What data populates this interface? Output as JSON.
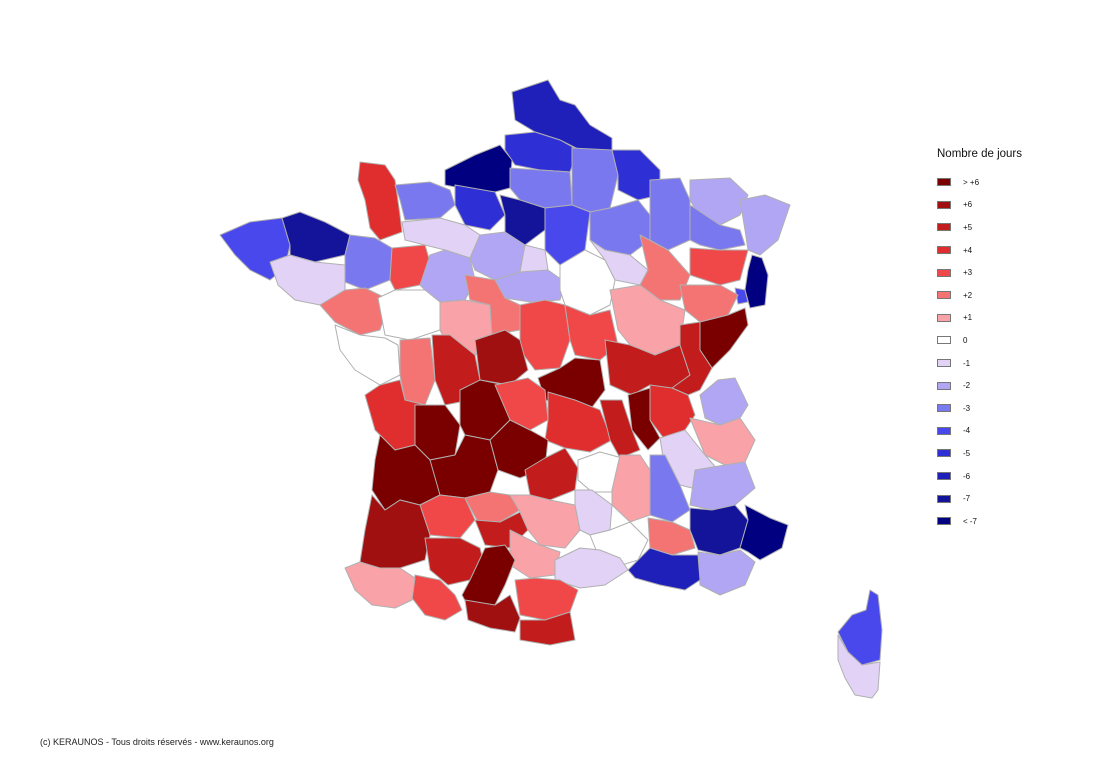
{
  "legend": {
    "title": "Nombre de jours",
    "items": [
      {
        "label": "> +6",
        "color": "#7a0000"
      },
      {
        "label": "+6",
        "color": "#a01010"
      },
      {
        "label": "+5",
        "color": "#c21c1c"
      },
      {
        "label": "+4",
        "color": "#e02e2e"
      },
      {
        "label": "+3",
        "color": "#f04848"
      },
      {
        "label": "+2",
        "color": "#f47474"
      },
      {
        "label": "+1",
        "color": "#f9a2a8"
      },
      {
        "label": "0",
        "color": "#ffffff"
      },
      {
        "label": "-1",
        "color": "#e2d2f6"
      },
      {
        "label": "-2",
        "color": "#b0a6f4"
      },
      {
        "label": "-3",
        "color": "#7a78ee"
      },
      {
        "label": "-4",
        "color": "#4848ec"
      },
      {
        "label": "-5",
        "color": "#2f2fd6"
      },
      {
        "label": "-6",
        "color": "#1f1fba"
      },
      {
        "label": "-7",
        "color": "#14149a"
      },
      {
        "label": "< -7",
        "color": "#000080"
      }
    ]
  },
  "copyright": "(c) KERAUNOS - Tous droits réservés - www.keraunos.org"
}
